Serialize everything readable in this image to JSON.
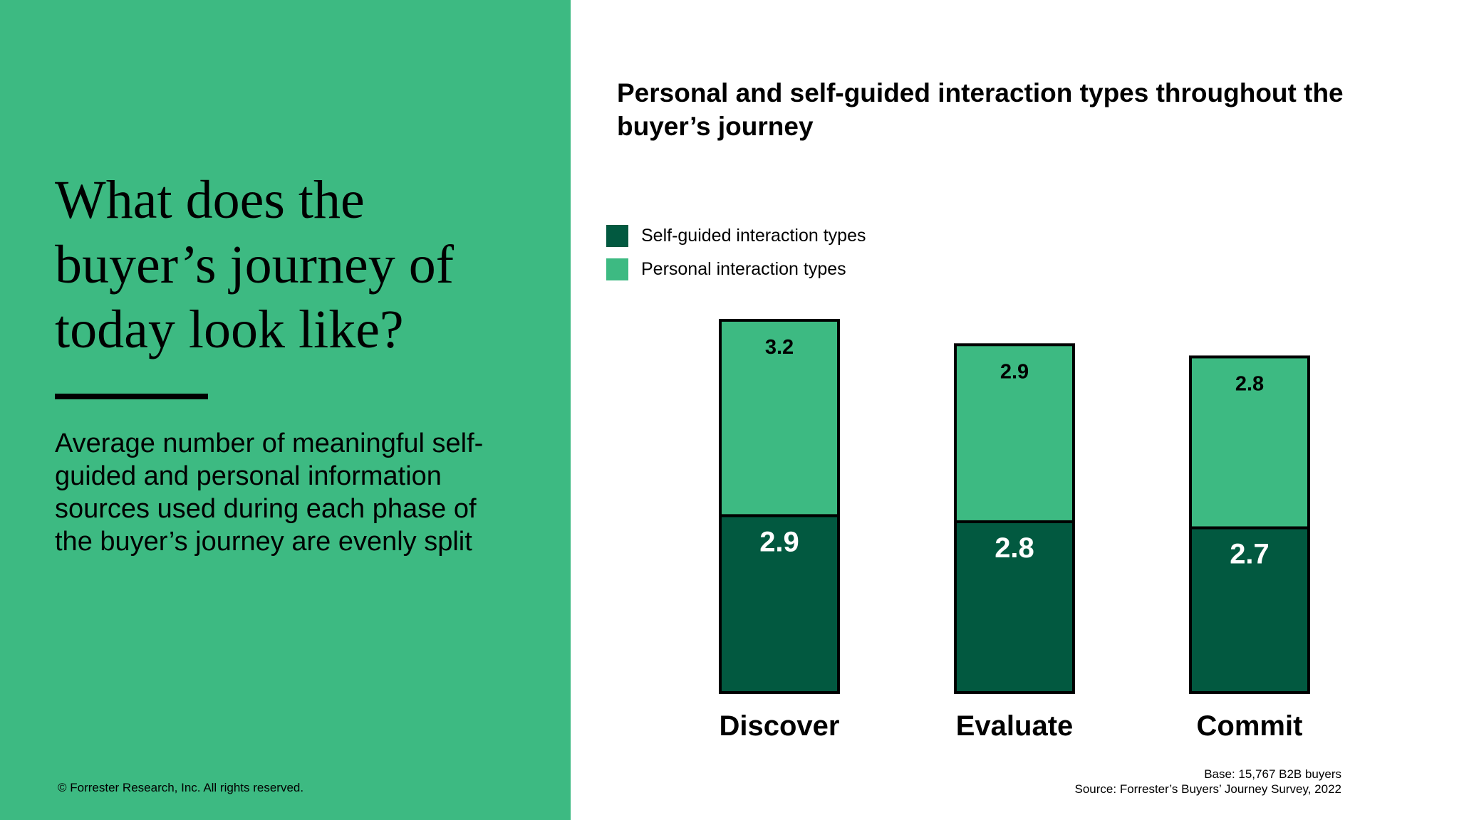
{
  "left": {
    "headline": "What does the buyer’s journey of today look like?",
    "description": "Average number of meaningful self-guided and personal information sources used during each phase of the buyer’s journey are evenly split",
    "copyright": "© Forrester Research, Inc. All rights reserved."
  },
  "footer": {
    "base": "Base: 15,767 B2B buyers",
    "source": "Source: Forrester’s Buyers’ Journey Survey, 2022"
  },
  "colors": {
    "left_panel": "#3dba82",
    "self_guided": "#025940",
    "personal": "#3dba82"
  },
  "chart_data": {
    "type": "bar",
    "stacked": true,
    "title": "Personal and self-guided interaction types throughout the buyer’s journey",
    "categories": [
      "Discover",
      "Evaluate",
      "Commit"
    ],
    "series": [
      {
        "name": "Self-guided interaction types",
        "values": [
          2.9,
          2.8,
          2.7
        ],
        "color": "#025940",
        "label_color": "#ffffff"
      },
      {
        "name": "Personal interaction types",
        "values": [
          3.2,
          2.9,
          2.8
        ],
        "color": "#3dba82",
        "label_color": "#000000"
      }
    ],
    "legend": "top-left",
    "grid": false,
    "xlabel": "",
    "ylabel": ""
  }
}
